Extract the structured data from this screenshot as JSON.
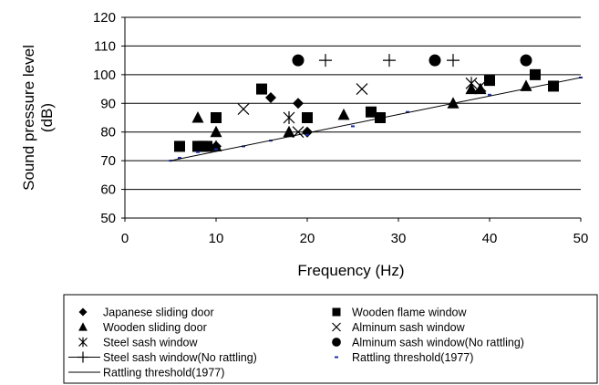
{
  "chart_data": {
    "type": "scatter",
    "xlabel": "Frequency (Hz)",
    "ylabel": "Sound pressure level\n(dB)",
    "xlim": [
      0,
      50
    ],
    "ylim": [
      50,
      120
    ],
    "xticks": [
      "0",
      "10",
      "20",
      "30",
      "40",
      "50"
    ],
    "yticks": [
      "50",
      "60",
      "70",
      "80",
      "90",
      "100",
      "110",
      "120"
    ],
    "grid": "horizontal",
    "legend_placement": "bottom",
    "series": [
      {
        "name": "Japanese sliding door",
        "marker": "diamond",
        "points": [
          [
            6,
            75
          ],
          [
            9,
            75
          ],
          [
            10,
            75
          ],
          [
            16,
            92
          ],
          [
            19,
            90
          ],
          [
            20,
            80
          ]
        ]
      },
      {
        "name": "Wooden flame window",
        "marker": "square",
        "points": [
          [
            6,
            75
          ],
          [
            8,
            75
          ],
          [
            8.5,
            75
          ],
          [
            9,
            75
          ],
          [
            10,
            85
          ],
          [
            15,
            95
          ],
          [
            20,
            85
          ],
          [
            27,
            87
          ],
          [
            28,
            85
          ],
          [
            40,
            98
          ],
          [
            45,
            100
          ],
          [
            47,
            96
          ]
        ]
      },
      {
        "name": "Wooden sliding door",
        "marker": "triangle",
        "points": [
          [
            8,
            85
          ],
          [
            10,
            80
          ],
          [
            10,
            75
          ],
          [
            18,
            80
          ],
          [
            24,
            86
          ],
          [
            36,
            90
          ],
          [
            38,
            95
          ],
          [
            39,
            95
          ],
          [
            44,
            96
          ]
        ]
      },
      {
        "name": "Alminum sash window",
        "marker": "x",
        "points": [
          [
            13,
            88
          ],
          [
            19,
            80
          ],
          [
            26,
            95
          ],
          [
            39,
            96
          ]
        ]
      },
      {
        "name": "Steel sash window",
        "marker": "asterisk",
        "points": [
          [
            18,
            85
          ],
          [
            38,
            97
          ]
        ]
      },
      {
        "name": "Alminum sash window(No rattling)",
        "marker": "circle",
        "points": [
          [
            19,
            105
          ],
          [
            34,
            105
          ],
          [
            44,
            105
          ]
        ]
      },
      {
        "name": "Steel sash window(No rattling)",
        "marker": "plus",
        "points": [
          [
            22,
            105
          ],
          [
            29,
            105
          ],
          [
            36,
            105
          ]
        ]
      },
      {
        "name": "Rattling threshold(1977)",
        "marker": "dash",
        "points": [
          [
            5,
            70
          ],
          [
            6,
            71
          ],
          [
            8,
            73
          ],
          [
            10,
            74
          ],
          [
            13,
            75
          ],
          [
            16,
            77
          ],
          [
            20,
            79
          ],
          [
            25,
            82
          ],
          [
            31,
            87
          ],
          [
            40,
            93
          ],
          [
            50,
            99
          ]
        ]
      },
      {
        "name": "Rattling threshold(1977)",
        "marker": "line",
        "points": [
          [
            5,
            70
          ],
          [
            50,
            99
          ]
        ]
      }
    ]
  }
}
